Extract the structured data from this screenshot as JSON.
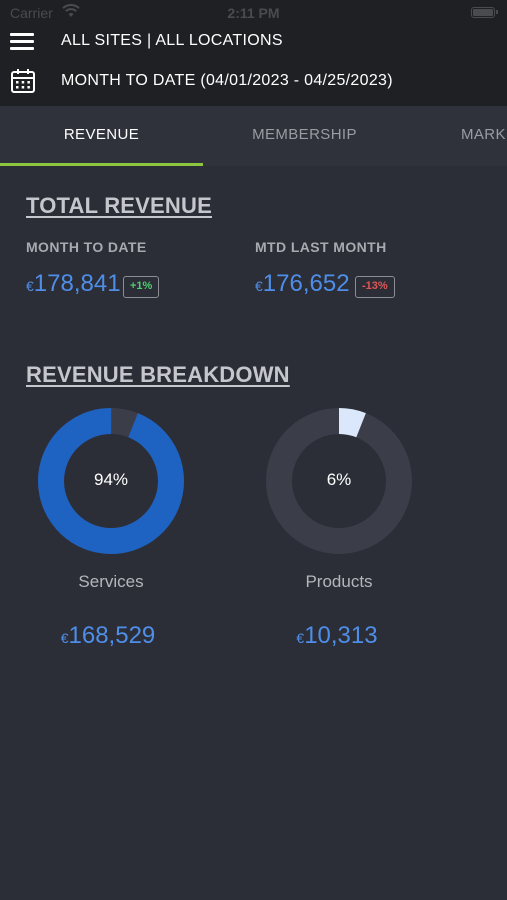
{
  "status_bar": {
    "carrier": "Carrier",
    "time": "2:11 PM",
    "wifi_icon": "wifi-icon",
    "battery_icon": "battery-icon"
  },
  "header": {
    "menu_icon": "hamburger-menu-icon",
    "sites": "ALL SITES | ALL LOCATIONS",
    "calendar_icon": "calendar-icon",
    "date_range": "MONTH TO DATE (04/01/2023 - 04/25/2023)"
  },
  "tabs": [
    {
      "label": "REVENUE",
      "active": true
    },
    {
      "label": "MEMBERSHIP",
      "active": false
    },
    {
      "label": "MARK",
      "active": false
    }
  ],
  "colors": {
    "accent_green": "#8dc63f",
    "value_blue": "#4f8ee8",
    "services_blue": "#1e63c2",
    "products_light": "#dbe8fb",
    "positive": "#4ad16a",
    "negative": "#e05555"
  },
  "total_revenue": {
    "title": "TOTAL REVENUE",
    "mtd": {
      "label": "MONTH TO DATE",
      "currency": "€",
      "value": "178,841",
      "change": "+1%"
    },
    "last_month": {
      "label": "MTD LAST MONTH",
      "currency": "€",
      "value": "176,652",
      "change": "-13%"
    }
  },
  "breakdown": {
    "title": "REVENUE BREAKDOWN",
    "items": [
      {
        "label": "Services",
        "percent_text": "94%",
        "fraction": 0.94,
        "currency": "€",
        "amount": "168,529"
      },
      {
        "label": "Products",
        "percent_text": "6%",
        "fraction": 0.06,
        "currency": "€",
        "amount": "10,313"
      }
    ]
  }
}
